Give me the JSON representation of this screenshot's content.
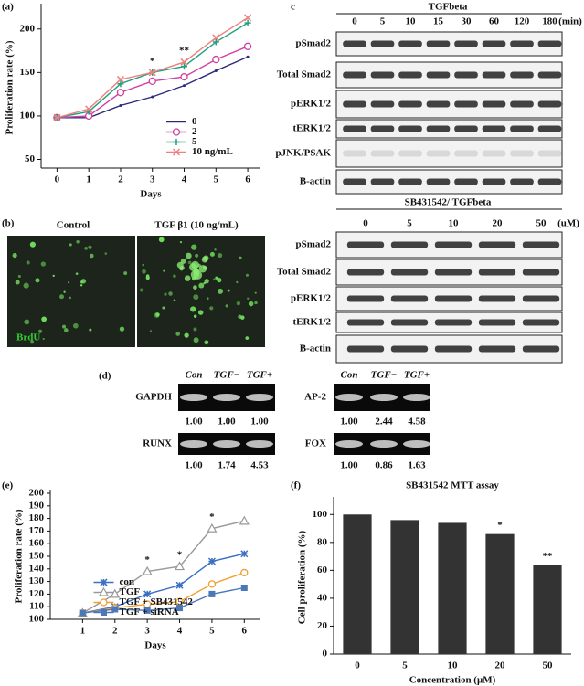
{
  "chart_data": [
    {
      "type": "line",
      "label": "(a)",
      "x_label": "Days",
      "y_label": "Proliferation rate (%)",
      "x": [
        0,
        1,
        2,
        3,
        4,
        5,
        6
      ],
      "xlim": [
        -0.5,
        6.4
      ],
      "xticks": [
        0,
        1,
        2,
        3,
        4,
        5,
        6
      ],
      "ylim": [
        40,
        225
      ],
      "yticks": [
        50,
        100,
        150,
        200
      ],
      "legend": "lower right",
      "series": [
        {
          "name": "0",
          "color": "#2a2a7a",
          "marker": "none",
          "values": [
            98,
            98,
            112,
            122,
            135,
            152,
            168
          ]
        },
        {
          "name": "2",
          "color": "#d040a0",
          "marker": "circle",
          "values": [
            98,
            100,
            127,
            140,
            145,
            165,
            180
          ]
        },
        {
          "name": "5",
          "color": "#20a080",
          "marker": "plus",
          "values": [
            98,
            105,
            137,
            150,
            157,
            185,
            207
          ]
        },
        {
          "name": "10 ng/mL",
          "color": "#f08080",
          "marker": "x",
          "values": [
            98,
            108,
            142,
            150,
            162,
            190,
            213
          ]
        }
      ],
      "annotations": [
        {
          "x": 3,
          "text": "*"
        },
        {
          "x": 4,
          "text": "**"
        }
      ]
    },
    {
      "type": "line",
      "label": "(e)",
      "x_label": "Days",
      "y_label": "Proliferation rate (%)",
      "x": [
        1,
        2,
        3,
        4,
        5,
        6
      ],
      "xlim": [
        0,
        6.5
      ],
      "xticks": [
        1,
        2,
        3,
        4,
        5,
        6
      ],
      "ylim": [
        100,
        200
      ],
      "yticks": [
        100,
        110,
        120,
        130,
        140,
        150,
        160,
        170,
        180,
        190,
        200
      ],
      "legend": "lower center",
      "series": [
        {
          "name": "con",
          "color": "#3a6fc4",
          "marker": "asterisk",
          "values": [
            105,
            110,
            120,
            127,
            146,
            152
          ]
        },
        {
          "name": "TGF",
          "color": "#999999",
          "marker": "triangle",
          "values": [
            105,
            120,
            138,
            142,
            172,
            178
          ]
        },
        {
          "name": "TGF + SB431542",
          "color": "#f0a030",
          "marker": "circle",
          "values": [
            105,
            109,
            112,
            114,
            128,
            137
          ]
        },
        {
          "name": "TGF + siRNA",
          "color": "#4a78b8",
          "marker": "square",
          "values": [
            105,
            108,
            107,
            109,
            120,
            125
          ]
        }
      ],
      "annotations": [
        {
          "x": 3,
          "text": "*"
        },
        {
          "x": 4,
          "text": "*"
        },
        {
          "x": 5,
          "text": "*"
        }
      ]
    },
    {
      "type": "bar",
      "label": "(f)",
      "title": "SB431542 MTT assay",
      "x_label": "Concentration (μM)",
      "y_label": "Cell proliferation (%)",
      "categories": [
        "0",
        "5",
        "10",
        "20",
        "50"
      ],
      "values": [
        100,
        96,
        94,
        86,
        64
      ],
      "color": "#333333",
      "ylim": [
        0,
        110
      ],
      "yticks": [
        0,
        20,
        40,
        60,
        80,
        100
      ],
      "annotations": [
        {
          "x": "20",
          "text": "*"
        },
        {
          "x": "50",
          "text": "**"
        }
      ]
    }
  ],
  "panel_b": {
    "label": "(b)",
    "columns": [
      "Control",
      "TGF β1 (10 ng/mL)"
    ],
    "stain": "BrdU"
  },
  "panel_c": {
    "label": "c",
    "blots": [
      {
        "title": "TGFbeta",
        "lanes": [
          "0",
          "5",
          "10",
          "15",
          "30",
          "60",
          "120",
          "180"
        ],
        "unit": "(min)",
        "rows": [
          "pSmad2",
          "Total Smad2",
          "pERK1/2",
          "tERK1/2",
          "pJNK/PSAK",
          "B-actin"
        ]
      },
      {
        "title": "SB431542/ TGFbeta",
        "lanes": [
          "0",
          "5",
          "10",
          "20",
          "50"
        ],
        "unit": "(uM)",
        "rows": [
          "pSmad2",
          "Total Smad2",
          "pERK1/2",
          "tERK1/2",
          "B-actin"
        ]
      }
    ]
  },
  "panel_d": {
    "label": "(d)",
    "gels": [
      {
        "lanes": [
          "Con",
          "TGF−",
          "TGF+"
        ],
        "rows": [
          {
            "name": "GAPDH",
            "values": [
              "1.00",
              "1.00",
              "1.00"
            ]
          },
          {
            "name": "RUNX",
            "values": [
              "1.00",
              "1.74",
              "4.53"
            ]
          }
        ]
      },
      {
        "lanes": [
          "Con",
          "TGF−",
          "TGF+"
        ],
        "rows": [
          {
            "name": "AP-2",
            "values": [
              "1.00",
              "2.44",
              "4.58"
            ]
          },
          {
            "name": "FOX",
            "values": [
              "1.00",
              "0.86",
              "1.63"
            ]
          }
        ]
      }
    ]
  }
}
